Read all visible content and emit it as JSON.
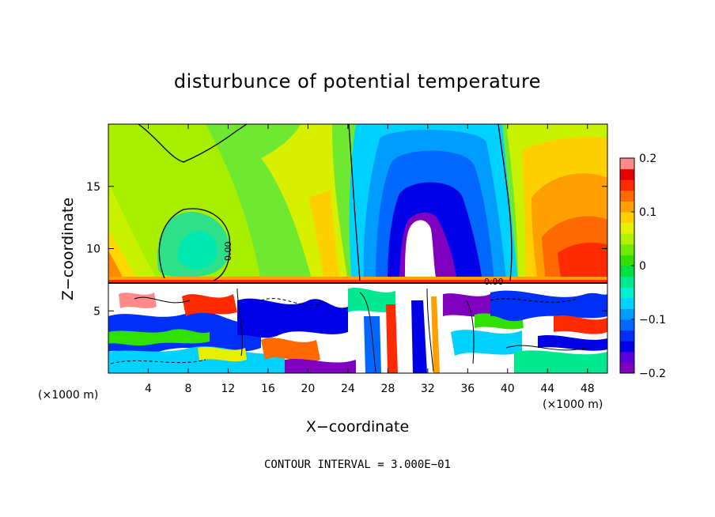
{
  "chart_data": {
    "type": "heatmap",
    "title": "disturbunce of potential temperature",
    "xlabel": "X−coordinate",
    "ylabel": "Z−coordinate",
    "x_unit_left": "(×1000 m)",
    "x_unit_right": "(×1000 m)",
    "x_ticks": [
      "4",
      "8",
      "12",
      "16",
      "20",
      "24",
      "28",
      "32",
      "36",
      "40",
      "44",
      "48"
    ],
    "x_tick_values": [
      4,
      8,
      12,
      16,
      20,
      24,
      28,
      32,
      36,
      40,
      44,
      48
    ],
    "y_ticks": [
      "5",
      "10",
      "15"
    ],
    "y_tick_values": [
      5,
      10,
      15
    ],
    "xlim": [
      0,
      50
    ],
    "ylim": [
      0,
      20
    ],
    "colorbar": {
      "labels": [
        "0.2",
        "0.1",
        "0",
        "−0.1",
        "−0.2"
      ],
      "values": [
        0.2,
        0.1,
        0,
        -0.1,
        -0.2
      ],
      "range": [
        -0.2,
        0.2
      ],
      "colors": [
        "#7f00bf",
        "#5a00d9",
        "#0000e6",
        "#0030f5",
        "#0068ff",
        "#009cff",
        "#00d2ff",
        "#00f0d0",
        "#00e890",
        "#00e040",
        "#30e000",
        "#70ea00",
        "#b0f000",
        "#e8f000",
        "#ffd000",
        "#ffa000",
        "#ff6a00",
        "#ff2a00",
        "#e80000",
        "#ff8a8a"
      ]
    },
    "contour_labels": [
      "0.00",
      "0.00"
    ],
    "contour_interval_text": "CONTOUR INTERVAL = 3.000E−01"
  }
}
